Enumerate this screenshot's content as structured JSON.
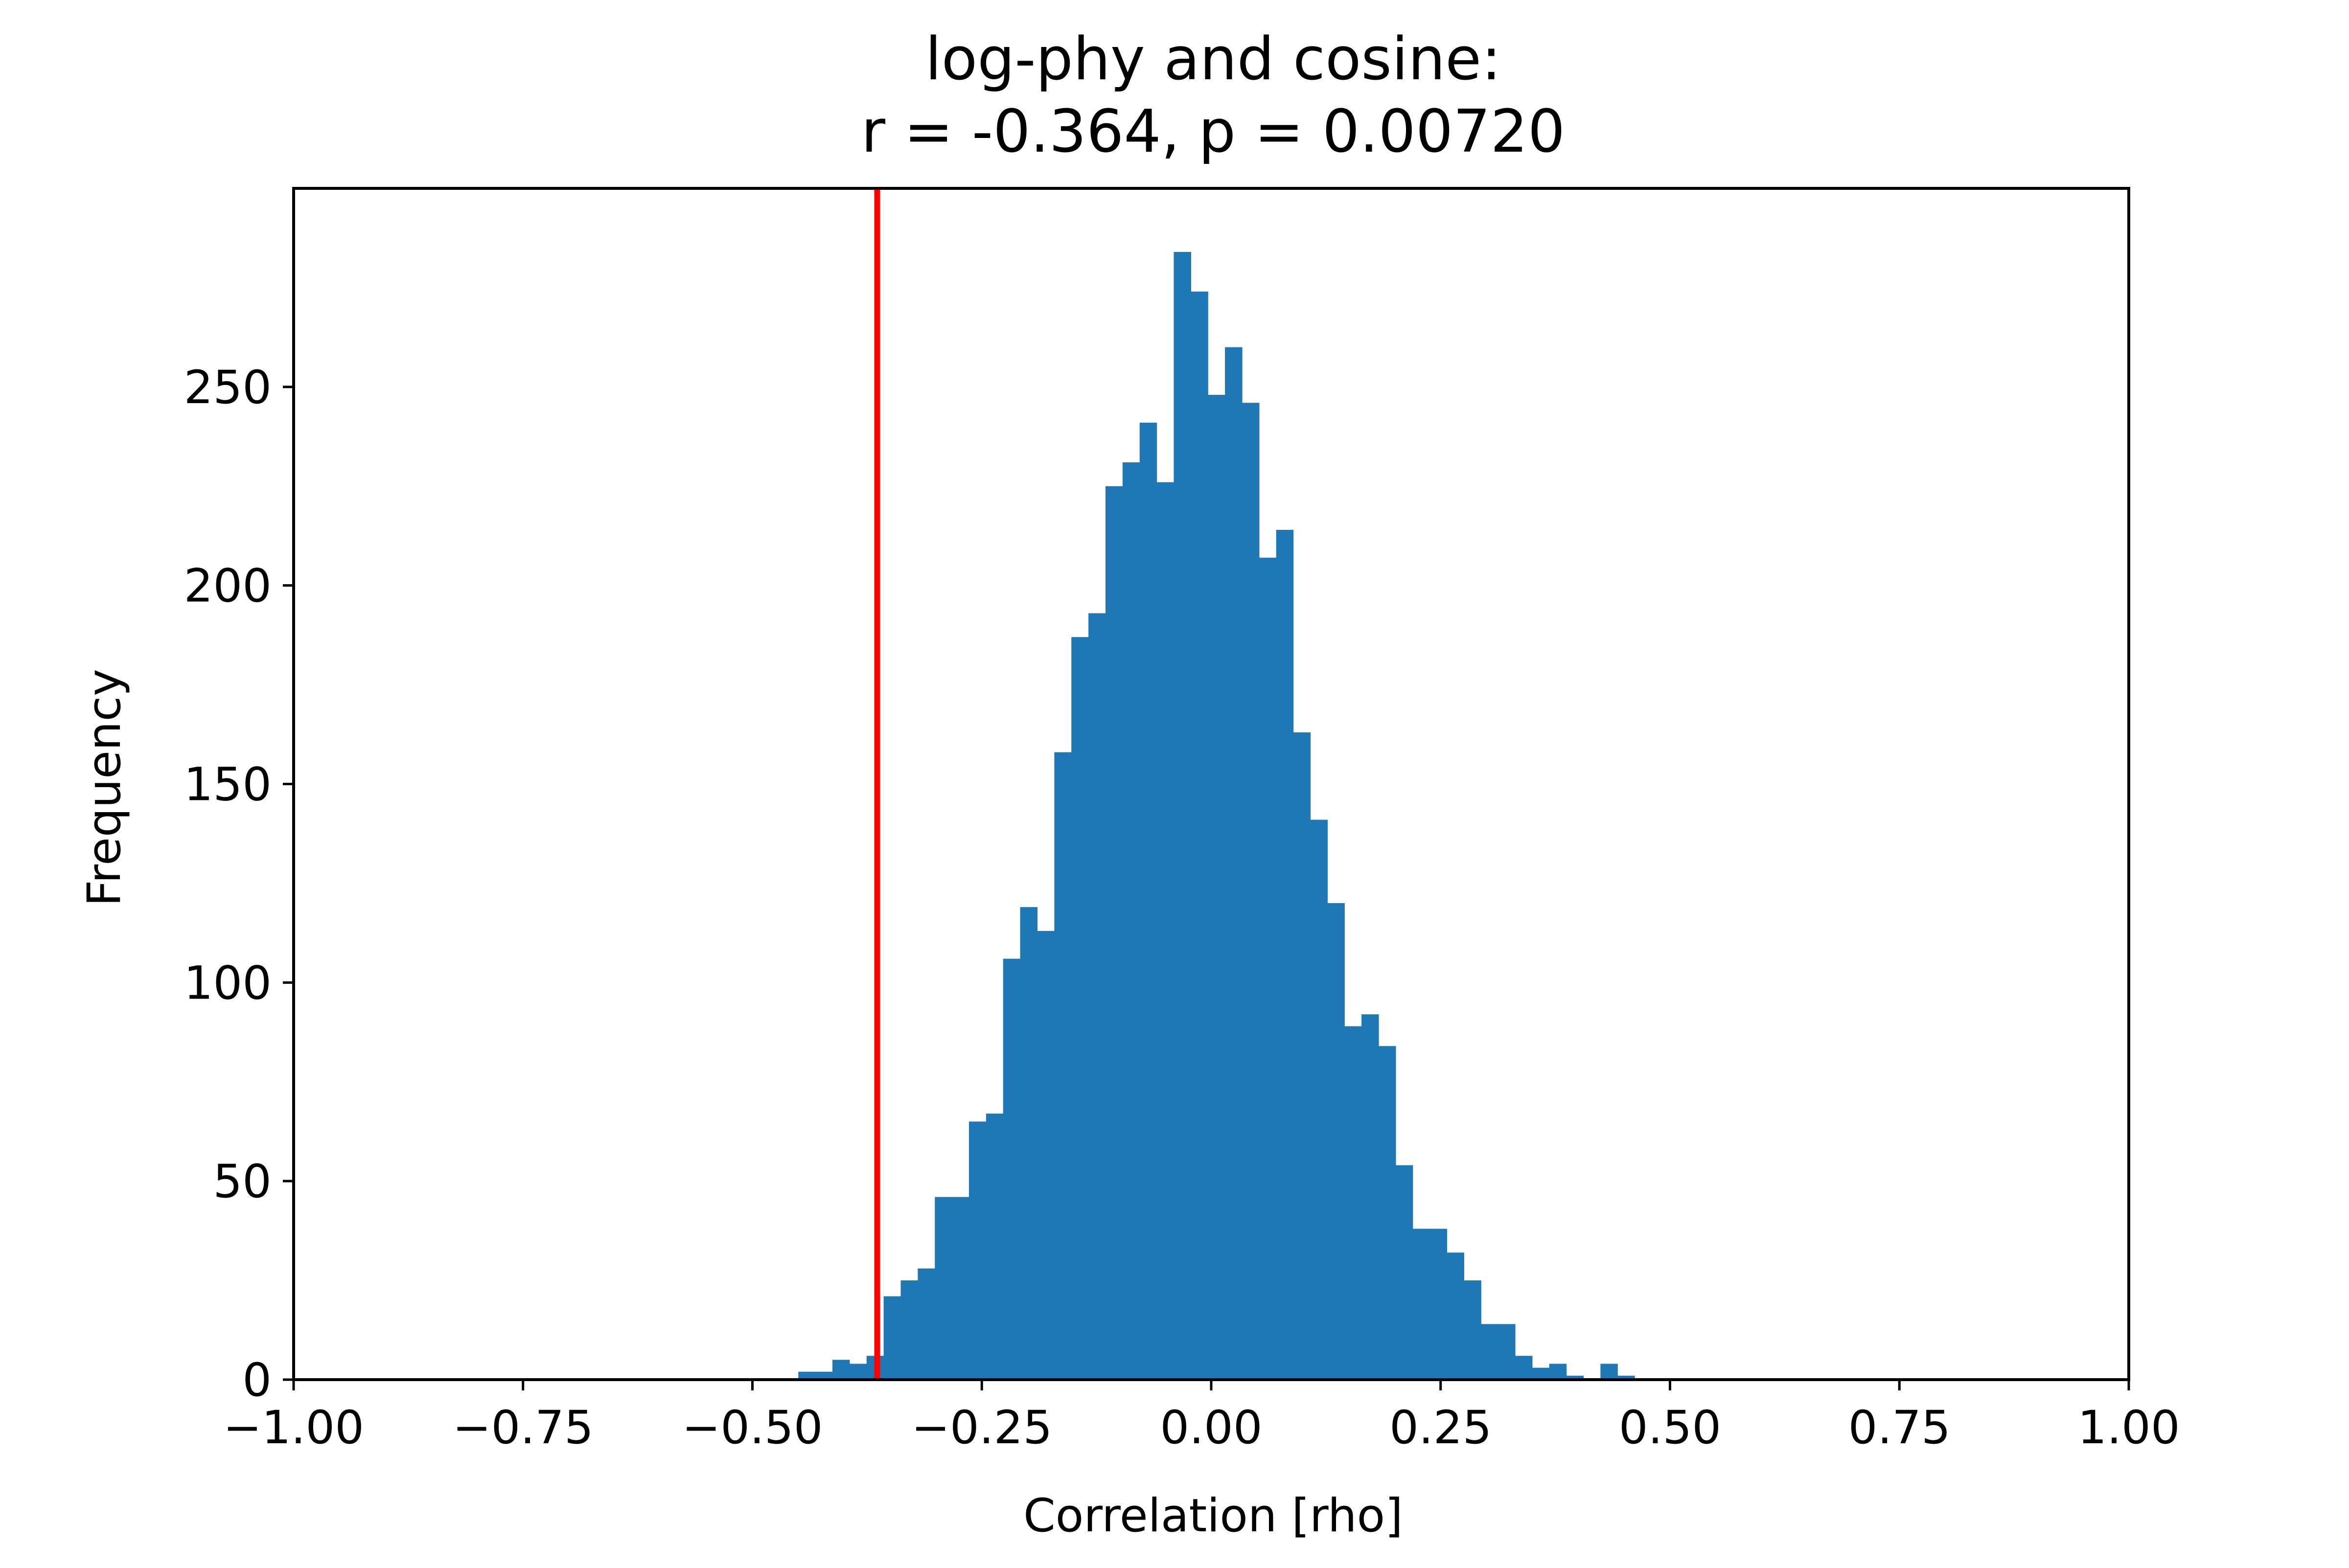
{
  "chart_data": {
    "type": "bar",
    "title_line1": "log-phy and cosine:",
    "title_line2": "r = -0.364, p = 0.00720",
    "xlabel": "Correlation [rho]",
    "ylabel": "Frequency",
    "xlim": [
      -1.0,
      1.0
    ],
    "ylim": [
      0,
      300
    ],
    "x_ticks": [
      -1.0,
      -0.75,
      -0.5,
      -0.25,
      0.0,
      0.25,
      0.5,
      0.75,
      1.0
    ],
    "x_tick_labels": [
      "−1.00",
      "−0.75",
      "−0.50",
      "−0.25",
      "0.00",
      "0.25",
      "0.50",
      "0.75",
      "1.00"
    ],
    "y_ticks": [
      0,
      50,
      100,
      150,
      200,
      250
    ],
    "y_tick_labels": [
      "0",
      "50",
      "100",
      "150",
      "200",
      "250"
    ],
    "bar_color": "#1f77b4",
    "marker_color": "#ff0000",
    "marker_x": -0.364,
    "bins": {
      "start": -0.45,
      "width": 0.0186,
      "counts": [
        2,
        2,
        5,
        4,
        6,
        21,
        25,
        28,
        46,
        46,
        65,
        67,
        106,
        119,
        113,
        158,
        187,
        193,
        225,
        231,
        241,
        226,
        284,
        274,
        248,
        260,
        246,
        207,
        214,
        163,
        141,
        120,
        89,
        92,
        84,
        54,
        38,
        38,
        32,
        25,
        14,
        14,
        6,
        3,
        4,
        1,
        0,
        4,
        1
      ]
    }
  }
}
